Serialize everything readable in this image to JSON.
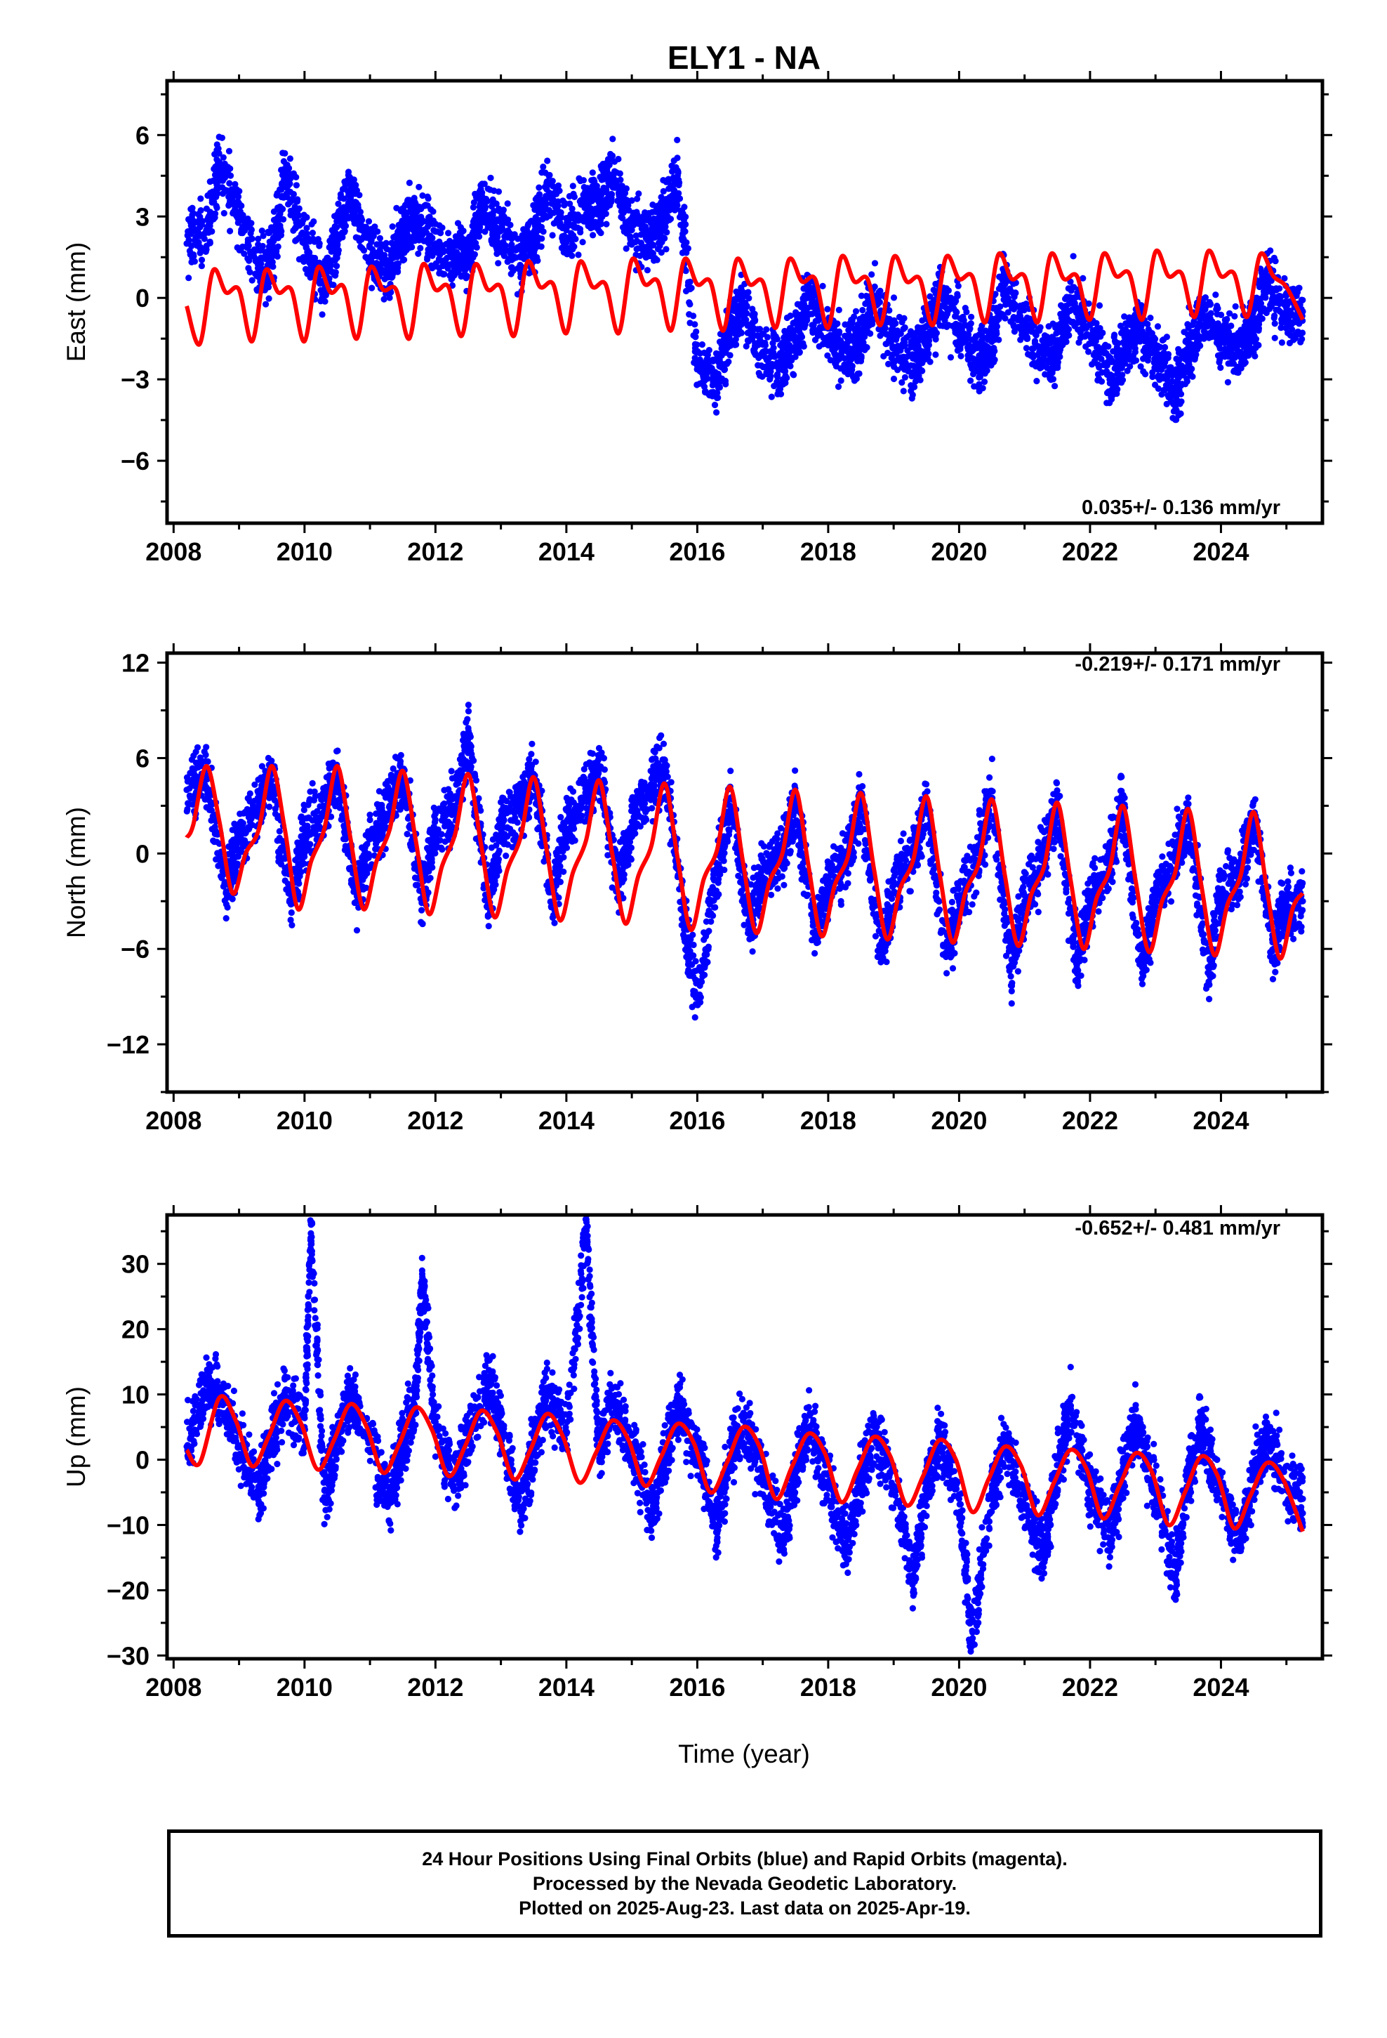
{
  "title": "ELY1 - NA",
  "xlabel": "Time (year)",
  "caption": {
    "line1": "24 Hour Positions Using Final Orbits (blue) and Rapid Orbits (magenta).",
    "line2": "Processed by the Nevada Geodetic Laboratory.",
    "line3": "Plotted on 2025-Aug-23. Last data on 2025-Apr-19."
  },
  "colors": {
    "final_orbits": "#0000ff",
    "model_fit": "#ff0000",
    "rapid_orbits": "#ff00ff"
  },
  "chart_data": [
    {
      "type": "scatter",
      "component": "east",
      "ylabel": "East (mm)",
      "rate_label": "0.035+/- 0.136 mm/yr",
      "xlim": [
        2007.9,
        2025.55
      ],
      "ylim": [
        -8.3,
        8.0
      ],
      "xticks": [
        2008,
        2010,
        2012,
        2014,
        2016,
        2018,
        2020,
        2022,
        2024
      ],
      "yticks": [
        -6,
        -3,
        0,
        3,
        6
      ],
      "ytick_labels": [
        "−6",
        "−3",
        "0",
        "3",
        "6"
      ],
      "grid": false,
      "series": [
        {
          "role": "daily positions",
          "x": [
            2008.2,
            2008.5,
            2008.7,
            2009.0,
            2009.3,
            2009.5,
            2009.7,
            2010.0,
            2010.3,
            2010.5,
            2010.7,
            2011.0,
            2011.3,
            2011.5,
            2011.7,
            2012.0,
            2012.3,
            2012.5,
            2012.7,
            2013.0,
            2013.3,
            2013.5,
            2013.7,
            2014.0,
            2014.3,
            2014.5,
            2014.7,
            2015.0,
            2015.3,
            2015.5,
            2015.7,
            2016.0,
            2016.3,
            2016.5,
            2016.7,
            2017.0,
            2017.3,
            2017.5,
            2017.7,
            2018.0,
            2018.3,
            2018.5,
            2018.7,
            2019.0,
            2019.3,
            2019.5,
            2019.7,
            2020.0,
            2020.3,
            2020.5,
            2020.7,
            2021.0,
            2021.3,
            2021.5,
            2021.7,
            2022.0,
            2022.3,
            2022.5,
            2022.7,
            2023.0,
            2023.3,
            2023.5,
            2023.7,
            2024.0,
            2024.3,
            2024.5,
            2024.7,
            2025.0,
            2025.25
          ],
          "y": [
            2.0,
            2.5,
            5.0,
            3.0,
            1.0,
            1.5,
            4.5,
            2.0,
            0.5,
            2.0,
            4.0,
            1.5,
            1.0,
            2.5,
            3.0,
            2.0,
            1.5,
            1.5,
            3.5,
            2.5,
            1.5,
            2.0,
            4.0,
            2.5,
            3.5,
            3.5,
            4.5,
            2.5,
            2.0,
            3.0,
            4.5,
            -2.5,
            -3.0,
            -1.0,
            -0.5,
            -2.0,
            -2.5,
            -1.5,
            0.0,
            -1.5,
            -2.0,
            -1.5,
            0.0,
            -1.5,
            -2.5,
            -1.5,
            0.0,
            -1.0,
            -2.5,
            -1.5,
            0.5,
            -1.0,
            -2.0,
            -2.0,
            0.0,
            -1.0,
            -3.0,
            -2.0,
            -1.0,
            -2.0,
            -3.5,
            -2.0,
            -0.5,
            -1.5,
            -2.0,
            -1.0,
            0.5,
            -0.5,
            -0.5
          ]
        },
        {
          "role": "model fit",
          "x": [
            2008.2,
            2008.4,
            2008.6,
            2008.8,
            2009.0,
            2009.2,
            2009.4,
            2009.6,
            2009.8,
            2010.0,
            2010.2,
            2010.4,
            2010.6,
            2010.8,
            2011.0,
            2011.2,
            2011.4,
            2011.6,
            2011.8,
            2012.0,
            2012.2,
            2012.4,
            2012.6,
            2012.8,
            2013.0,
            2013.2,
            2013.4,
            2013.6,
            2013.8,
            2014.0,
            2014.2,
            2014.4,
            2014.6,
            2014.8,
            2015.0,
            2015.2,
            2015.4,
            2015.6,
            2015.8,
            2016.0,
            2016.2,
            2016.4,
            2016.6,
            2016.8,
            2017.0,
            2017.2,
            2017.4,
            2017.6,
            2017.8,
            2018.0,
            2018.2,
            2018.4,
            2018.6,
            2018.8,
            2019.0,
            2019.2,
            2019.4,
            2019.6,
            2019.8,
            2020.0,
            2020.2,
            2020.4,
            2020.6,
            2020.8,
            2021.0,
            2021.2,
            2021.4,
            2021.6,
            2021.8,
            2022.0,
            2022.2,
            2022.4,
            2022.6,
            2022.8,
            2023.0,
            2023.2,
            2023.4,
            2023.6,
            2023.8,
            2024.0,
            2024.2,
            2024.4,
            2024.6,
            2024.8,
            2025.0,
            2025.25
          ],
          "y": [
            -0.3,
            -1.7,
            1.0,
            0.2,
            0.3,
            -1.6,
            1.0,
            0.2,
            0.3,
            -1.6,
            1.1,
            0.2,
            0.4,
            -1.5,
            1.1,
            0.3,
            0.3,
            -1.5,
            1.2,
            0.3,
            0.4,
            -1.4,
            1.2,
            0.3,
            0.4,
            -1.4,
            1.3,
            0.4,
            0.5,
            -1.3,
            1.3,
            0.4,
            0.5,
            -1.3,
            1.4,
            0.5,
            0.6,
            -1.2,
            1.4,
            0.5,
            0.6,
            -1.2,
            1.4,
            0.5,
            0.6,
            -1.1,
            1.4,
            0.6,
            0.7,
            -1.1,
            1.5,
            0.6,
            0.7,
            -1.0,
            1.5,
            0.6,
            0.7,
            -1.0,
            1.5,
            0.7,
            0.8,
            -0.9,
            1.6,
            0.7,
            0.8,
            -0.9,
            1.6,
            0.7,
            0.8,
            -0.8,
            1.6,
            0.8,
            0.9,
            -0.8,
            1.7,
            0.8,
            0.9,
            -0.7,
            1.7,
            0.8,
            0.9,
            -0.7,
            1.6,
            0.8,
            0.4,
            -0.8
          ]
        }
      ]
    },
    {
      "type": "scatter",
      "component": "north",
      "ylabel": "North (mm)",
      "rate_label": "-0.219+/- 0.171 mm/yr",
      "xlim": [
        2007.9,
        2025.55
      ],
      "ylim": [
        -15.0,
        12.6
      ],
      "xticks": [
        2008,
        2010,
        2012,
        2014,
        2016,
        2018,
        2020,
        2022,
        2024
      ],
      "yticks": [
        -12,
        -6,
        0,
        6,
        12
      ],
      "ytick_labels": [
        "−12",
        "−6",
        "0",
        "6",
        "12"
      ],
      "grid": false,
      "series": [
        {
          "role": "daily positions",
          "x": [
            2008.2,
            2008.5,
            2008.8,
            2009.0,
            2009.3,
            2009.5,
            2009.8,
            2010.0,
            2010.3,
            2010.5,
            2010.8,
            2011.0,
            2011.3,
            2011.5,
            2011.8,
            2012.0,
            2012.3,
            2012.5,
            2012.8,
            2013.0,
            2013.3,
            2013.5,
            2013.8,
            2014.0,
            2014.3,
            2014.5,
            2014.8,
            2015.0,
            2015.3,
            2015.5,
            2015.8,
            2016.0,
            2016.3,
            2016.5,
            2016.8,
            2017.0,
            2017.3,
            2017.5,
            2017.8,
            2018.0,
            2018.3,
            2018.5,
            2018.8,
            2019.0,
            2019.3,
            2019.5,
            2019.8,
            2020.0,
            2020.3,
            2020.5,
            2020.8,
            2021.0,
            2021.3,
            2021.5,
            2021.8,
            2022.0,
            2022.3,
            2022.5,
            2022.8,
            2023.0,
            2023.3,
            2023.5,
            2023.8,
            2024.0,
            2024.3,
            2024.5,
            2024.8,
            2025.0,
            2025.25
          ],
          "y": [
            4.0,
            5.0,
            -2.5,
            1.0,
            3.0,
            5.0,
            -3.0,
            1.0,
            3.0,
            5.0,
            -3.0,
            1.0,
            3.0,
            5.0,
            -3.0,
            1.5,
            3.0,
            7.5,
            -3.0,
            1.5,
            3.0,
            5.0,
            -3.0,
            2.0,
            3.5,
            5.5,
            -2.0,
            2.0,
            4.0,
            5.5,
            -4.0,
            -9.0,
            -1.0,
            3.0,
            -4.5,
            -1.5,
            0.0,
            3.0,
            -5.0,
            -2.0,
            0.0,
            3.0,
            -6.0,
            -2.5,
            0.0,
            3.0,
            -6.5,
            -3.0,
            0.0,
            3.5,
            -7.0,
            -3.0,
            0.0,
            3.0,
            -7.0,
            -3.0,
            -0.5,
            3.0,
            -7.5,
            -2.5,
            -0.5,
            2.5,
            -7.5,
            -2.5,
            -1.0,
            2.5,
            -6.0,
            -3.0,
            -3.0
          ]
        },
        {
          "role": "model fit",
          "x": [
            2008.2,
            2008.3,
            2008.5,
            2008.7,
            2008.9,
            2009.1,
            2009.3,
            2009.5,
            2009.7,
            2009.9,
            2010.1,
            2010.3,
            2010.5,
            2010.7,
            2010.9,
            2011.1,
            2011.3,
            2011.5,
            2011.7,
            2011.9,
            2012.1,
            2012.3,
            2012.5,
            2012.7,
            2012.9,
            2013.1,
            2013.3,
            2013.5,
            2013.7,
            2013.9,
            2014.1,
            2014.3,
            2014.5,
            2014.7,
            2014.9,
            2015.1,
            2015.3,
            2015.5,
            2015.7,
            2015.9,
            2016.1,
            2016.3,
            2016.5,
            2016.7,
            2016.9,
            2017.1,
            2017.3,
            2017.5,
            2017.7,
            2017.9,
            2018.1,
            2018.3,
            2018.5,
            2018.7,
            2018.9,
            2019.1,
            2019.3,
            2019.5,
            2019.7,
            2019.9,
            2020.1,
            2020.3,
            2020.5,
            2020.7,
            2020.9,
            2021.1,
            2021.3,
            2021.5,
            2021.7,
            2021.9,
            2022.1,
            2022.3,
            2022.5,
            2022.7,
            2022.9,
            2023.1,
            2023.3,
            2023.5,
            2023.7,
            2023.9,
            2024.1,
            2024.3,
            2024.5,
            2024.7,
            2024.9,
            2025.1,
            2025.25
          ],
          "y": [
            1.0,
            1.8,
            5.5,
            2.0,
            -2.5,
            0.0,
            1.5,
            5.5,
            1.5,
            -3.5,
            -0.5,
            1.5,
            5.5,
            1.0,
            -3.5,
            -0.5,
            1.5,
            5.2,
            0.8,
            -3.8,
            -0.8,
            1.2,
            5.0,
            0.5,
            -4.0,
            -1.0,
            1.0,
            4.8,
            0.2,
            -4.2,
            -1.2,
            0.8,
            4.6,
            0.0,
            -4.4,
            -1.4,
            0.5,
            4.4,
            -0.3,
            -4.8,
            -1.6,
            0.2,
            4.2,
            -0.6,
            -5.0,
            -1.8,
            0.0,
            4.0,
            -0.8,
            -5.2,
            -2.0,
            -0.2,
            3.8,
            -1.0,
            -5.4,
            -2.2,
            -0.4,
            3.6,
            -1.2,
            -5.6,
            -2.4,
            -0.6,
            3.4,
            -1.4,
            -5.8,
            -2.6,
            -0.8,
            3.2,
            -1.6,
            -6.0,
            -2.8,
            -1.0,
            3.0,
            -1.8,
            -6.2,
            -3.0,
            -1.2,
            2.8,
            -2.0,
            -6.4,
            -3.2,
            -1.4,
            2.6,
            -2.2,
            -6.6,
            -3.4,
            -2.5
          ]
        }
      ]
    },
    {
      "type": "scatter",
      "component": "up",
      "ylabel": "Up (mm)",
      "rate_label": "-0.652+/- 0.481 mm/yr",
      "xlim": [
        2007.9,
        2025.55
      ],
      "ylim": [
        -30.5,
        37.5
      ],
      "xticks": [
        2008,
        2010,
        2012,
        2014,
        2016,
        2018,
        2020,
        2022,
        2024
      ],
      "yticks": [
        -30,
        -20,
        -10,
        0,
        10,
        20,
        30
      ],
      "ytick_labels": [
        "−30",
        "−20",
        "−10",
        "0",
        "10",
        "20",
        "30"
      ],
      "grid": false,
      "series": [
        {
          "role": "daily positions",
          "x": [
            2008.2,
            2008.5,
            2008.7,
            2009.0,
            2009.3,
            2009.5,
            2009.7,
            2010.0,
            2010.1,
            2010.3,
            2010.5,
            2010.7,
            2011.0,
            2011.3,
            2011.5,
            2011.7,
            2011.8,
            2012.0,
            2012.3,
            2012.5,
            2012.8,
            2013.0,
            2013.3,
            2013.5,
            2013.7,
            2014.0,
            2014.3,
            2014.5,
            2014.7,
            2015.0,
            2015.3,
            2015.5,
            2015.7,
            2016.0,
            2016.3,
            2016.5,
            2016.7,
            2017.0,
            2017.3,
            2017.5,
            2017.7,
            2018.0,
            2018.3,
            2018.5,
            2018.7,
            2019.0,
            2019.3,
            2019.5,
            2019.7,
            2020.0,
            2020.2,
            2020.5,
            2020.7,
            2021.0,
            2021.3,
            2021.5,
            2021.7,
            2022.0,
            2022.3,
            2022.5,
            2022.7,
            2023.0,
            2023.3,
            2023.5,
            2023.7,
            2024.0,
            2024.3,
            2024.5,
            2024.7,
            2025.0,
            2025.25
          ],
          "y": [
            2.0,
            12.0,
            10.0,
            2.0,
            -5.0,
            3.0,
            10.0,
            5.0,
            36.0,
            -6.0,
            3.0,
            10.0,
            3.0,
            -6.0,
            2.0,
            10.0,
            28.0,
            5.0,
            -3.0,
            3.0,
            12.0,
            5.0,
            -8.0,
            2.0,
            10.0,
            4.0,
            35.5,
            1.0,
            9.0,
            2.0,
            -8.0,
            0.0,
            8.0,
            2.0,
            -10.0,
            0.0,
            6.0,
            -2.0,
            -12.0,
            -2.0,
            5.0,
            -4.0,
            -14.0,
            -3.0,
            4.0,
            -4.0,
            -18.0,
            -4.0,
            3.0,
            -6.0,
            -28.0,
            -5.0,
            2.0,
            -7.0,
            -14.0,
            -2.0,
            8.0,
            -4.0,
            -12.0,
            -2.0,
            6.0,
            -5.0,
            -18.0,
            -3.0,
            5.0,
            -5.0,
            -12.0,
            -3.0,
            4.0,
            -4.0,
            -6.0
          ]
        },
        {
          "role": "model fit",
          "x": [
            2008.2,
            2008.4,
            2008.7,
            2008.95,
            2009.2,
            2009.45,
            2009.7,
            2009.95,
            2010.2,
            2010.45,
            2010.7,
            2010.95,
            2011.2,
            2011.45,
            2011.7,
            2011.95,
            2012.2,
            2012.45,
            2012.7,
            2012.95,
            2013.2,
            2013.45,
            2013.7,
            2013.95,
            2014.2,
            2014.45,
            2014.7,
            2014.95,
            2015.2,
            2015.45,
            2015.7,
            2015.95,
            2016.2,
            2016.45,
            2016.7,
            2016.95,
            2017.2,
            2017.45,
            2017.7,
            2017.95,
            2018.2,
            2018.45,
            2018.7,
            2018.95,
            2019.2,
            2019.45,
            2019.7,
            2019.95,
            2020.2,
            2020.45,
            2020.7,
            2020.95,
            2021.2,
            2021.45,
            2021.7,
            2021.95,
            2022.2,
            2022.45,
            2022.7,
            2022.95,
            2023.2,
            2023.45,
            2023.7,
            2023.95,
            2024.2,
            2024.45,
            2024.7,
            2024.95,
            2025.25
          ],
          "y": [
            1.5,
            -0.5,
            9.5,
            6.0,
            -1.0,
            3.5,
            9.0,
            5.5,
            -1.5,
            3.0,
            8.5,
            5.0,
            -2.0,
            2.5,
            8.0,
            4.5,
            -2.5,
            2.0,
            7.5,
            4.0,
            -3.0,
            1.5,
            7.0,
            3.5,
            -3.5,
            1.0,
            6.0,
            3.0,
            -4.0,
            0.5,
            5.5,
            2.5,
            -5.0,
            -0.5,
            5.0,
            2.0,
            -6.0,
            -1.0,
            4.0,
            1.0,
            -6.5,
            -1.5,
            3.5,
            0.5,
            -7.0,
            -2.5,
            3.0,
            0.0,
            -8.0,
            -3.0,
            2.0,
            -1.0,
            -8.5,
            -3.5,
            1.5,
            -1.5,
            -9.0,
            -4.0,
            1.0,
            -2.0,
            -10.0,
            -5.0,
            0.5,
            -2.5,
            -10.5,
            -5.5,
            -0.5,
            -3.0,
            -11.0
          ]
        }
      ]
    }
  ]
}
